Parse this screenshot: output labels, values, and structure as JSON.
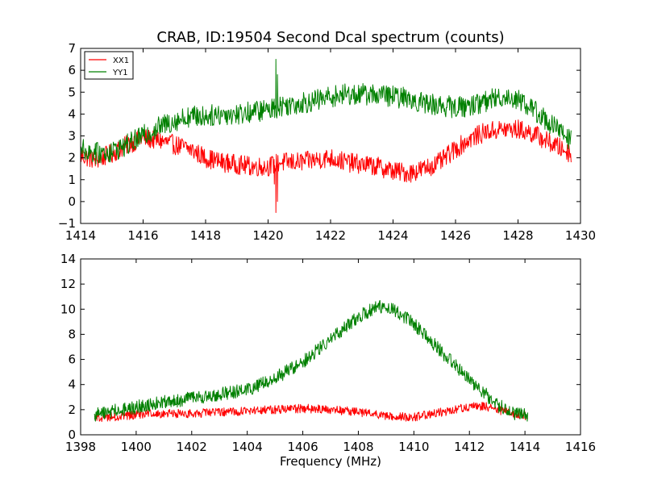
{
  "chart_data": [
    {
      "type": "line",
      "title": "CRAB, ID:19504 Second Dcal spectrum (counts)",
      "xlabel": "",
      "ylabel": "",
      "xlim": [
        1414,
        1430
      ],
      "ylim": [
        -1,
        7
      ],
      "xticks": [
        "1414",
        "1416",
        "1418",
        "1420",
        "1422",
        "1424",
        "1426",
        "1428",
        "1430"
      ],
      "yticks": [
        "−1",
        "0",
        "1",
        "2",
        "3",
        "4",
        "5",
        "6",
        "7"
      ],
      "grid": false,
      "legend": "top-left",
      "x_range": [
        1414.0,
        1429.7
      ],
      "series": [
        {
          "name": "XX1",
          "color": "#ff0000",
          "noise": 0.45,
          "trend": [
            [
              1414.0,
              2.1
            ],
            [
              1414.5,
              1.9
            ],
            [
              1415.0,
              2.2
            ],
            [
              1415.5,
              2.6
            ],
            [
              1416.0,
              2.9
            ],
            [
              1416.5,
              2.8
            ],
            [
              1417.0,
              2.6
            ],
            [
              1417.5,
              2.4
            ],
            [
              1418.0,
              2.0
            ],
            [
              1418.5,
              1.8
            ],
            [
              1419.0,
              1.7
            ],
            [
              1419.5,
              1.6
            ],
            [
              1420.0,
              1.6
            ],
            [
              1420.4,
              1.8
            ],
            [
              1421.0,
              1.8
            ],
            [
              1421.5,
              1.9
            ],
            [
              1422.0,
              2.0
            ],
            [
              1422.5,
              1.8
            ],
            [
              1423.0,
              1.7
            ],
            [
              1423.5,
              1.6
            ],
            [
              1424.0,
              1.4
            ],
            [
              1424.5,
              1.3
            ],
            [
              1425.0,
              1.5
            ],
            [
              1425.5,
              1.8
            ],
            [
              1426.0,
              2.4
            ],
            [
              1426.5,
              2.9
            ],
            [
              1427.0,
              3.2
            ],
            [
              1427.5,
              3.3
            ],
            [
              1428.0,
              3.3
            ],
            [
              1428.5,
              3.1
            ],
            [
              1429.0,
              2.7
            ],
            [
              1429.7,
              2.2
            ]
          ],
          "spikes": [
            [
              1420.25,
              -0.5
            ],
            [
              1420.3,
              0.0
            ],
            [
              1420.2,
              0.8
            ]
          ]
        },
        {
          "name": "YY1",
          "color": "#008000",
          "noise": 0.5,
          "trend": [
            [
              1414.0,
              2.4
            ],
            [
              1414.5,
              2.2
            ],
            [
              1415.0,
              2.3
            ],
            [
              1415.5,
              2.6
            ],
            [
              1416.0,
              3.0
            ],
            [
              1416.5,
              3.4
            ],
            [
              1417.0,
              3.7
            ],
            [
              1417.5,
              3.9
            ],
            [
              1418.0,
              3.9
            ],
            [
              1418.5,
              4.0
            ],
            [
              1419.0,
              4.0
            ],
            [
              1419.5,
              4.1
            ],
            [
              1420.0,
              4.2
            ],
            [
              1420.5,
              4.4
            ],
            [
              1421.0,
              4.5
            ],
            [
              1421.5,
              4.6
            ],
            [
              1422.0,
              4.8
            ],
            [
              1422.5,
              4.9
            ],
            [
              1423.0,
              4.9
            ],
            [
              1423.5,
              4.9
            ],
            [
              1424.0,
              4.8
            ],
            [
              1424.5,
              4.7
            ],
            [
              1425.0,
              4.5
            ],
            [
              1425.5,
              4.4
            ],
            [
              1426.0,
              4.3
            ],
            [
              1426.5,
              4.4
            ],
            [
              1427.0,
              4.6
            ],
            [
              1427.5,
              4.8
            ],
            [
              1428.0,
              4.7
            ],
            [
              1428.5,
              4.2
            ],
            [
              1429.0,
              3.6
            ],
            [
              1429.7,
              2.8
            ]
          ],
          "spikes": [
            [
              1420.25,
              6.5
            ],
            [
              1420.3,
              5.8
            ]
          ]
        }
      ]
    },
    {
      "type": "line",
      "title": "",
      "xlabel": "Frequency (MHz)",
      "ylabel": "",
      "xlim": [
        1398,
        1416
      ],
      "ylim": [
        0,
        14
      ],
      "xticks": [
        "1398",
        "1400",
        "1402",
        "1404",
        "1406",
        "1408",
        "1410",
        "1412",
        "1414",
        "1416"
      ],
      "yticks": [
        "0",
        "2",
        "4",
        "6",
        "8",
        "10",
        "12",
        "14"
      ],
      "grid": false,
      "legend": "none",
      "x_range": [
        1398.5,
        1414.1
      ],
      "series": [
        {
          "name": "",
          "color": "#ff0000",
          "noise": 0.35,
          "trend": [
            [
              1398.5,
              1.4
            ],
            [
              1399.0,
              1.4
            ],
            [
              1400.0,
              1.6
            ],
            [
              1401.0,
              1.7
            ],
            [
              1402.0,
              1.7
            ],
            [
              1403.0,
              1.8
            ],
            [
              1404.0,
              1.9
            ],
            [
              1405.0,
              2.0
            ],
            [
              1406.0,
              2.1
            ],
            [
              1407.0,
              2.0
            ],
            [
              1408.0,
              1.8
            ],
            [
              1409.0,
              1.5
            ],
            [
              1410.0,
              1.4
            ],
            [
              1411.0,
              1.8
            ],
            [
              1412.0,
              2.2
            ],
            [
              1412.5,
              2.3
            ],
            [
              1413.0,
              2.0
            ],
            [
              1413.5,
              1.7
            ],
            [
              1414.1,
              1.5
            ]
          ],
          "spikes": []
        },
        {
          "name": "",
          "color": "#008000",
          "noise": 0.55,
          "trend": [
            [
              1398.5,
              1.6
            ],
            [
              1399.0,
              1.8
            ],
            [
              1400.0,
              2.2
            ],
            [
              1401.0,
              2.6
            ],
            [
              1402.0,
              2.9
            ],
            [
              1403.0,
              3.2
            ],
            [
              1404.0,
              3.6
            ],
            [
              1405.0,
              4.5
            ],
            [
              1406.0,
              5.8
            ],
            [
              1407.0,
              7.6
            ],
            [
              1408.0,
              9.4
            ],
            [
              1408.7,
              10.2
            ],
            [
              1409.3,
              10.0
            ],
            [
              1410.0,
              8.8
            ],
            [
              1411.0,
              6.6
            ],
            [
              1412.0,
              4.4
            ],
            [
              1413.0,
              2.4
            ],
            [
              1413.5,
              1.8
            ],
            [
              1414.1,
              1.5
            ]
          ],
          "spikes": []
        }
      ]
    }
  ]
}
